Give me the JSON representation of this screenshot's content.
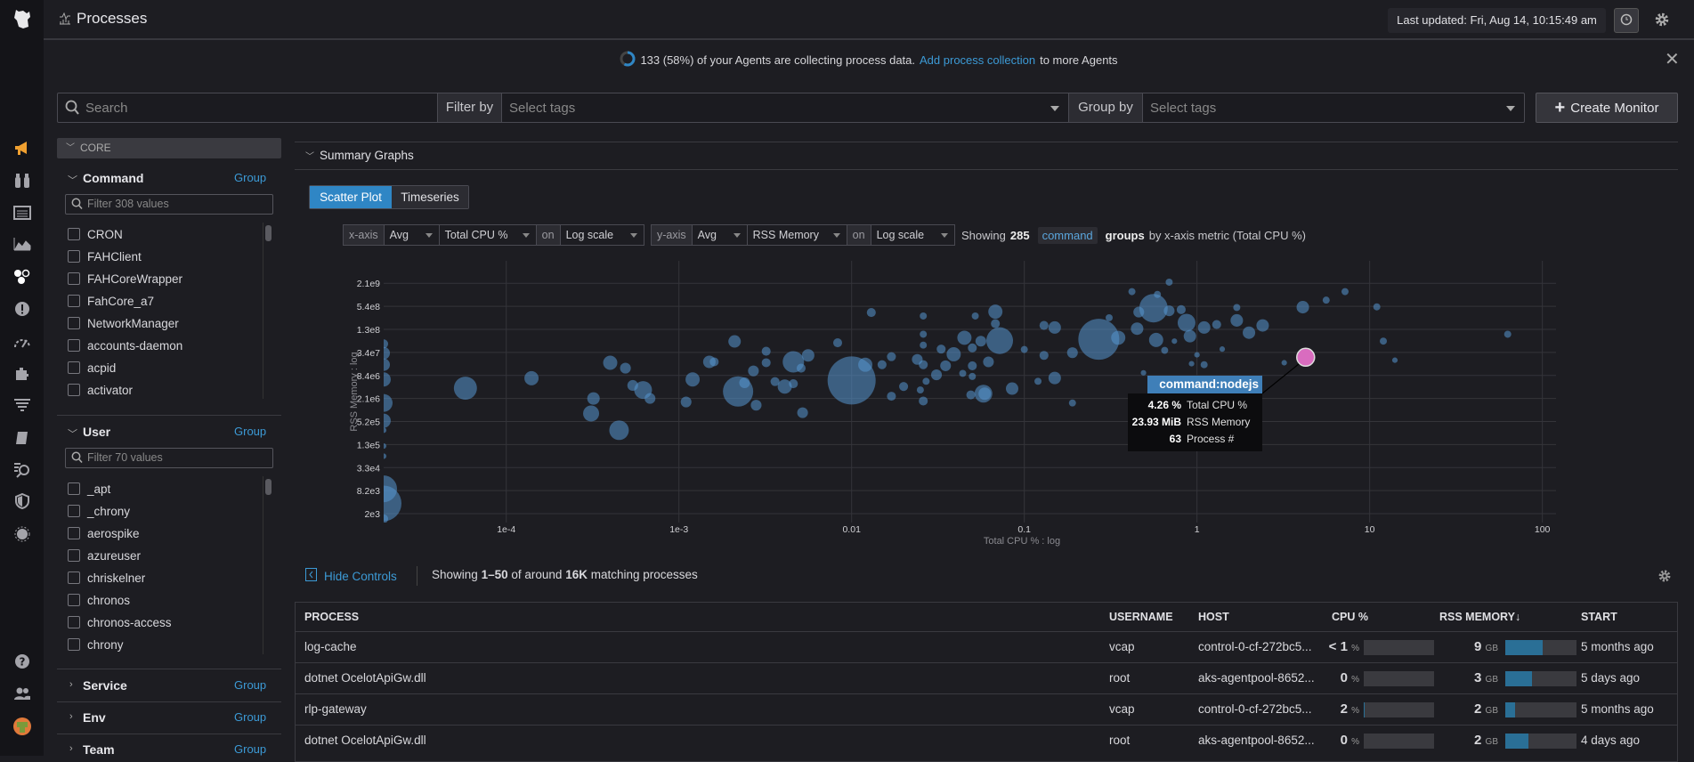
{
  "header": {
    "title": "Processes",
    "last_updated": "Last updated: Fri, Aug 14, 10:15:49 am"
  },
  "banner": {
    "text_before": "133 (58%) of your Agents are collecting process data.",
    "link": "Add process collection",
    "text_after": "to more Agents",
    "agent_fraction": 0.58
  },
  "search": {
    "placeholder": "Search",
    "filter_label": "Filter by",
    "filter_placeholder": "Select tags",
    "group_label": "Group by",
    "group_placeholder": "Select tags",
    "create_monitor": "Create Monitor"
  },
  "facets": {
    "core_label": "CORE",
    "command": {
      "title": "Command",
      "group": "Group",
      "filter_placeholder": "Filter 308 values",
      "items": [
        "CRON",
        "FAHClient",
        "FAHCoreWrapper",
        "FahCore_a7",
        "NetworkManager",
        "accounts-daemon",
        "acpid",
        "activator"
      ]
    },
    "user": {
      "title": "User",
      "group": "Group",
      "filter_placeholder": "Filter 70 values",
      "items": [
        "_apt",
        "_chrony",
        "aerospike",
        "azureuser",
        "chriskelner",
        "chronos",
        "chronos-access",
        "chrony"
      ]
    },
    "collapsed": [
      {
        "title": "Service",
        "group": "Group"
      },
      {
        "title": "Env",
        "group": "Group"
      },
      {
        "title": "Team",
        "group": "Group"
      }
    ]
  },
  "summary": {
    "title": "Summary Graphs",
    "tabs": [
      "Scatter Plot",
      "Timeseries"
    ],
    "active_tab": "Scatter Plot",
    "x_axis": {
      "label": "x-axis",
      "agg": "Avg",
      "metric": "Total CPU %",
      "on": "on",
      "scale": "Log scale"
    },
    "y_axis": {
      "label": "y-axis",
      "agg": "Avg",
      "metric": "RSS Memory",
      "on": "on",
      "scale": "Log scale"
    },
    "showing_prefix": "Showing",
    "showing_count": "285",
    "group_tag": "command",
    "showing_groups": "groups",
    "showing_suffix": "by x-axis metric (Total CPU %)"
  },
  "chart_data": {
    "type": "scatter",
    "xlabel": "Total CPU % : log",
    "ylabel": "RSS Memory : log",
    "x_scale": "log",
    "y_scale": "log",
    "xlim": [
      1.95e-05,
      120
    ],
    "ylim": [
      1200,
      8300000000
    ],
    "grid": true,
    "x_ticks": [
      {
        "v": 0.0001,
        "label": "1e-4"
      },
      {
        "v": 0.001,
        "label": "1e-3"
      },
      {
        "v": 0.01,
        "label": "0.01"
      },
      {
        "v": 0.1,
        "label": "0.1"
      },
      {
        "v": 1,
        "label": "1"
      },
      {
        "v": 10,
        "label": "10"
      },
      {
        "v": 100,
        "label": "100"
      }
    ],
    "y_ticks": [
      {
        "v": 2048,
        "label": "2e3"
      },
      {
        "v": 8192,
        "label": "8.2e3"
      },
      {
        "v": 32768,
        "label": "3.3e4"
      },
      {
        "v": 131072,
        "label": "1.3e5"
      },
      {
        "v": 524288,
        "label": "5.2e5"
      },
      {
        "v": 2097152,
        "label": "2.1e6"
      },
      {
        "v": 8388608,
        "label": "8.4e6"
      },
      {
        "v": 33554432,
        "label": "3.4e7"
      },
      {
        "v": 134217728,
        "label": "1.3e8"
      },
      {
        "v": 536870912,
        "label": "5.4e8"
      },
      {
        "v": 2147483648,
        "label": "2.1e9"
      }
    ],
    "bubble_color": "#5596cf",
    "highlight_color": "#d96cbf",
    "point_fields": [
      "cpu_pct",
      "rss_bytes",
      "process_count"
    ],
    "points": [
      [
        5.8e-05,
        3900000.0,
        106
      ],
      [
        0.00014,
        7100000.0,
        40
      ],
      [
        0.0004,
        18000000.0,
        40
      ],
      [
        0.00049,
        13000000.0,
        23
      ],
      [
        0.00054,
        4600000.0,
        23
      ],
      [
        0.00062,
        3500000.0,
        63
      ],
      [
        0.00068,
        2100000.0,
        23
      ],
      [
        0.00032,
        2100000.0,
        31
      ],
      [
        0.00031,
        850000.0,
        51
      ],
      [
        0.00045,
        310000.0,
        76
      ],
      [
        0.0012,
        6600000.0,
        40
      ],
      [
        0.0011,
        1700000.0,
        23
      ],
      [
        0.0015,
        19000000.0,
        31
      ],
      [
        0.0016,
        19000000.0,
        16
      ],
      [
        0.0021,
        65000000.0,
        31
      ],
      [
        0.0022,
        3200000.0,
        182
      ],
      [
        0.0024,
        5400000.0,
        23
      ],
      [
        0.0027,
        11000000.0,
        23
      ],
      [
        0.0028,
        1400000.0,
        23
      ],
      [
        0.0032,
        36000000.0,
        16
      ],
      [
        0.0032,
        18000000.0,
        16
      ],
      [
        0.0036,
        5800000.0,
        16
      ],
      [
        0.0041,
        4300000.0,
        40
      ],
      [
        0.0046,
        19000000.0,
        91
      ],
      [
        0.0046,
        5100000.0,
        16
      ],
      [
        0.0051,
        13000000.0,
        16
      ],
      [
        0.0056,
        28000000.0,
        31
      ],
      [
        0.0052,
        890000.0,
        23
      ],
      [
        0.0083,
        60000000.0,
        16
      ],
      [
        0.01,
        6200000.0,
        459
      ],
      [
        0.013,
        370000000.0,
        16
      ],
      [
        0.012,
        16000000.0,
        40
      ],
      [
        0.015,
        16000000.0,
        16
      ],
      [
        0.017,
        26000000.0,
        16
      ],
      [
        0.02,
        4300000.0,
        16
      ],
      [
        0.017,
        2400000.0,
        16
      ],
      [
        0.026,
        300000000.0,
        10
      ],
      [
        0.026,
        100000000.0,
        10
      ],
      [
        0.026,
        52000000.0,
        10
      ],
      [
        0.026,
        16000000.0,
        16
      ],
      [
        0.026,
        1800000.0,
        16
      ],
      [
        0.024,
        22000000.0,
        23
      ],
      [
        0.031,
        8700000.0,
        23
      ],
      [
        0.027,
        5900000.0,
        10
      ],
      [
        0.025,
        3500000.0,
        10
      ],
      [
        0.033,
        41000000.0,
        16
      ],
      [
        0.039,
        30000000.0,
        40
      ],
      [
        0.045,
        81000000.0,
        40
      ],
      [
        0.035,
        15000000.0,
        23
      ],
      [
        0.044,
        9500000.0,
        10
      ],
      [
        0.05,
        44000000.0,
        16
      ],
      [
        0.05,
        15000000.0,
        16
      ],
      [
        0.05,
        7900000.0,
        10
      ],
      [
        0.052,
        300000000.0,
        10
      ],
      [
        0.058,
        2800000.0,
        63
      ],
      [
        0.068,
        390000000.0,
        40
      ],
      [
        0.068,
        190000000.0,
        16
      ],
      [
        0.056,
        66000000.0,
        23
      ],
      [
        0.062,
        19000000.0,
        23
      ],
      [
        0.049,
        2600000.0,
        16
      ],
      [
        0.072,
        68000000.0,
        142
      ],
      [
        0.15,
        150000000.0,
        31
      ],
      [
        0.13,
        170000000.0,
        16
      ],
      [
        0.27,
        74000000.0,
        333
      ],
      [
        0.31,
        270000000.0,
        10
      ],
      [
        0.35,
        81000000.0,
        40
      ],
      [
        0.42,
        1300000000.0,
        10
      ],
      [
        0.56,
        480000000.0,
        161
      ],
      [
        0.59,
        1100000000.0,
        10
      ],
      [
        0.46,
        380000000.0,
        23
      ],
      [
        0.69,
        2300000000.0,
        10
      ],
      [
        0.69,
        410000000.0,
        23
      ],
      [
        0.81,
        440000000.0,
        16
      ],
      [
        0.87,
        200000000.0,
        63
      ],
      [
        0.91,
        89000000.0,
        31
      ],
      [
        0.58,
        71000000.0,
        40
      ],
      [
        0.45,
        140000000.0,
        31
      ],
      [
        0.65,
        38000000.0,
        10
      ],
      [
        0.74,
        66000000.0,
        6
      ],
      [
        1.1,
        150000000.0,
        31
      ],
      [
        1.3,
        180000000.0,
        16
      ],
      [
        1.4,
        41000000.0,
        6
      ],
      [
        1.7,
        500000000.0,
        10
      ],
      [
        1.7,
        230000000.0,
        31
      ],
      [
        2.0,
        110000000.0,
        31
      ],
      [
        2.4,
        170000000.0,
        31
      ],
      [
        1.0,
        29000000.0,
        6
      ],
      [
        0.93,
        17000000.0,
        6
      ],
      [
        1.1,
        16000000.0,
        10
      ],
      [
        0.49,
        9800000.0,
        6
      ],
      [
        0.19,
        1600000.0,
        10
      ],
      [
        0.15,
        7200000.0,
        31
      ],
      [
        0.12,
        5900000.0,
        10
      ],
      [
        0.1,
        40000000.0,
        10
      ],
      [
        0.13,
        28000000.0,
        16
      ],
      [
        0.19,
        33000000.0,
        23
      ],
      [
        0.085,
        3800000.0,
        31
      ],
      [
        0.059,
        2800000.0,
        31
      ],
      [
        4.1,
        510000000.0,
        31
      ],
      [
        5.6,
        780000000.0,
        10
      ],
      [
        7.2,
        1300000000.0,
        10
      ],
      [
        11,
        520000000.0,
        10
      ],
      [
        12,
        66000000.0,
        10
      ],
      [
        14,
        21000000.0,
        6
      ],
      [
        3.2,
        18000000.0,
        6
      ],
      [
        63,
        100000000.0,
        10
      ],
      [
        0,
        56000000.0,
        16
      ],
      [
        0,
        32000000.0,
        31
      ],
      [
        0,
        16000000.0,
        31
      ],
      [
        0,
        6600000.0,
        40
      ],
      [
        0,
        1600000.0,
        63
      ],
      [
        0,
        550000.0,
        40
      ],
      [
        0,
        310000.0,
        6
      ],
      [
        0,
        120000.0,
        6
      ],
      [
        0,
        65000.0,
        6
      ],
      [
        0,
        9100.0,
        142
      ],
      [
        0,
        3800.0,
        252
      ],
      [
        0,
        1500.0,
        16
      ]
    ],
    "highlight": {
      "cpu_pct": 4.26,
      "rss_bytes": 25092915,
      "process_count": 63
    }
  },
  "tooltip": {
    "title": "command:nodejs",
    "rows": [
      {
        "value": "4.26 %",
        "label": "Total CPU %"
      },
      {
        "value": "23.93 MiB",
        "label": "RSS Memory"
      },
      {
        "value": "63",
        "label": "Process #"
      }
    ]
  },
  "table": {
    "hide_controls": "Hide Controls",
    "showing": {
      "prefix": "Showing",
      "range": "1–50",
      "mid": "of around",
      "total": "16K",
      "suffix": "matching processes"
    },
    "columns": [
      "PROCESS",
      "USERNAME",
      "HOST",
      "CPU %",
      "RSS MEMORY↓",
      "START"
    ],
    "rows": [
      {
        "process": "log-cache",
        "username": "vcap",
        "host": "control-0-cf-272bc5...",
        "cpu": "< 1",
        "cpu_unit": "%",
        "cpu_fraction": 0.0,
        "rss": "9",
        "rss_unit": "GB",
        "rss_fraction": 0.53,
        "start": "5 months ago"
      },
      {
        "process": "dotnet OcelotApiGw.dll",
        "username": "root",
        "host": "aks-agentpool-8652...",
        "cpu": "0",
        "cpu_unit": "%",
        "cpu_fraction": 0.0,
        "rss": "3",
        "rss_unit": "GB",
        "rss_fraction": 0.38,
        "start": "5 days ago"
      },
      {
        "process": "rlp-gateway",
        "username": "vcap",
        "host": "control-0-cf-272bc5...",
        "cpu": "2",
        "cpu_unit": "%",
        "cpu_fraction": 0.01,
        "rss": "2",
        "rss_unit": "GB",
        "rss_fraction": 0.14,
        "start": "5 months ago"
      },
      {
        "process": "dotnet OcelotApiGw.dll",
        "username": "root",
        "host": "aks-agentpool-8652...",
        "cpu": "0",
        "cpu_unit": "%",
        "cpu_fraction": 0.0,
        "rss": "2",
        "rss_unit": "GB",
        "rss_fraction": 0.33,
        "start": "4 days ago"
      }
    ]
  },
  "colors": {
    "accent": "#2f86c5",
    "link": "#3c9ad6",
    "nav_active": "#f0a030"
  }
}
